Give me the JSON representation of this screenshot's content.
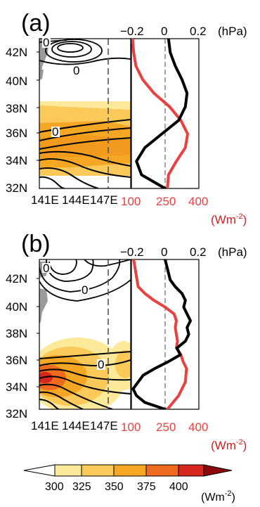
{
  "panels": [
    {
      "label": "(a)",
      "map": {
        "lon_ticks": [
          "141E",
          "144E",
          "147E"
        ],
        "lat_ticks": [
          "42N",
          "40N",
          "38N",
          "36N",
          "34N",
          "32N"
        ],
        "contour_labels": [
          "0",
          "0",
          "0"
        ]
      },
      "profile": {
        "top_ticks": [
          "−0.2",
          "0",
          "0.2"
        ],
        "top_unit": "(hPa)",
        "bottom_ticks": [
          "100",
          "250",
          "400"
        ],
        "bottom_unit_base": "(Wm",
        "bottom_unit_exp": "-2",
        "bottom_unit_close": ")"
      }
    },
    {
      "label": "(b)",
      "map": {
        "lon_ticks": [
          "141E",
          "144E",
          "147E"
        ],
        "lat_ticks": [
          "42N",
          "40N",
          "38N",
          "36N",
          "34N",
          "32N"
        ],
        "contour_labels": [
          "0",
          "0",
          "0"
        ]
      },
      "profile": {
        "top_ticks": [
          "−0.2",
          "0",
          "0.2"
        ],
        "top_unit": "(hPa)",
        "bottom_ticks": [
          "100",
          "250",
          "400"
        ],
        "bottom_unit_base": "(Wm",
        "bottom_unit_exp": "-2",
        "bottom_unit_close": ")"
      }
    }
  ],
  "colorbar": {
    "ticks": [
      "300",
      "325",
      "350",
      "375",
      "400"
    ],
    "unit_base": "(Wm",
    "unit_exp": "-2",
    "unit_close": ")",
    "colors": [
      "#ffffff",
      "#fde99a",
      "#fac95a",
      "#f5a623",
      "#ee6a1e",
      "#d7261e",
      "#8c0a0a"
    ]
  },
  "chart_data": [
    {
      "type": "line",
      "panel": "(a)",
      "xaxis_top_range": [
        -0.2,
        0.2
      ],
      "xaxis_bottom_range": [
        100,
        400
      ],
      "y_range_lat": [
        32,
        43
      ],
      "series": [
        {
          "color": "#000000",
          "axis": "top",
          "lat": [
            32,
            33,
            34,
            35,
            36,
            37,
            38,
            39,
            40,
            41,
            42,
            43
          ],
          "values": [
            0.0,
            -0.14,
            -0.17,
            -0.12,
            -0.02,
            0.08,
            0.12,
            0.13,
            0.1,
            0.06,
            0.03,
            0.02
          ]
        },
        {
          "color": "#e8413f",
          "axis": "bottom",
          "lat": [
            32,
            33,
            34,
            35,
            36,
            37,
            38,
            39,
            40,
            41,
            42,
            43
          ],
          "values": [
            260,
            265,
            300,
            340,
            350,
            320,
            270,
            200,
            150,
            120,
            110,
            105
          ]
        }
      ]
    },
    {
      "type": "line",
      "panel": "(b)",
      "xaxis_top_range": [
        -0.2,
        0.2
      ],
      "xaxis_bottom_range": [
        100,
        400
      ],
      "y_range_lat": [
        32,
        43
      ],
      "series": [
        {
          "color": "#000000",
          "axis": "top",
          "lat": [
            32,
            32.5,
            33,
            33.5,
            34,
            34.5,
            35,
            35.5,
            36,
            36.5,
            37,
            37.5,
            38,
            38.5,
            39,
            39.5,
            40,
            40.5,
            41,
            41.5,
            42,
            42.5,
            43
          ],
          "values": [
            0.0,
            -0.12,
            -0.17,
            -0.19,
            -0.16,
            -0.13,
            -0.06,
            0.02,
            0.09,
            0.07,
            0.12,
            0.14,
            0.13,
            0.15,
            0.13,
            0.11,
            0.12,
            0.1,
            0.06,
            0.03,
            0.02,
            0.01,
            0.0
          ]
        },
        {
          "color": "#e8413f",
          "axis": "bottom",
          "lat": [
            32,
            33,
            34,
            35,
            35.5,
            36,
            36.5,
            37,
            37.5,
            38,
            38.5,
            39,
            39.5,
            40,
            40.5,
            41,
            42,
            43
          ],
          "values": [
            260,
            310,
            340,
            345,
            330,
            320,
            300,
            305,
            300,
            295,
            300,
            290,
            250,
            200,
            160,
            130,
            120,
            110
          ]
        }
      ]
    }
  ]
}
